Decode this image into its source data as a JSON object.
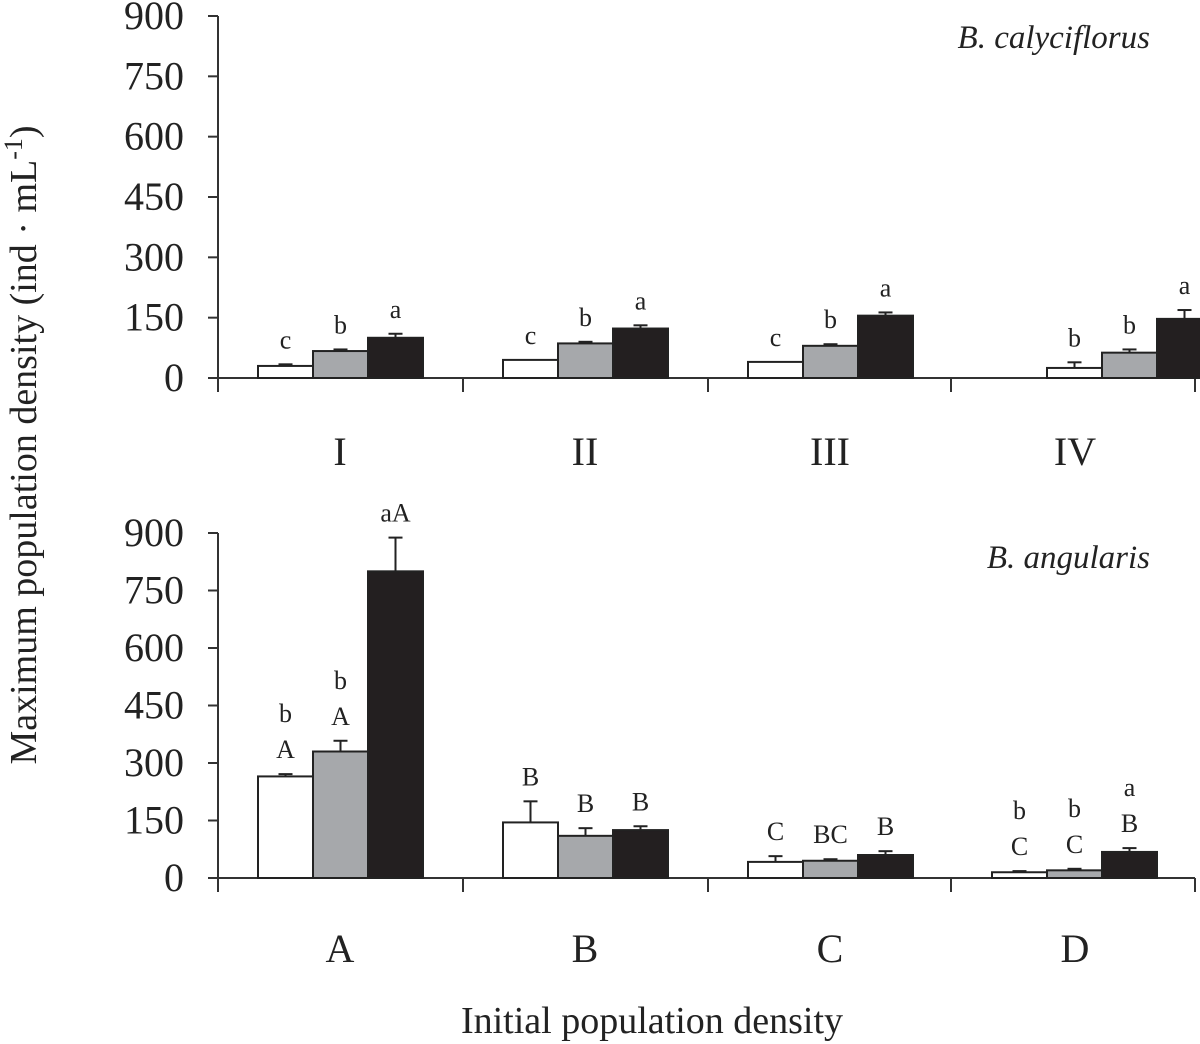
{
  "y_axis_title": "Maximum population density (ind · mL",
  "y_axis_title_sup": "-1",
  "y_axis_title_end": ")",
  "x_axis_title": "Initial population density",
  "colors": {
    "series1": "#ffffff",
    "series2": "#a6a8ab",
    "series3": "#231f20"
  },
  "chart_data": [
    {
      "type": "bar",
      "title": "B. calyciflorus",
      "ylim": [
        0,
        900
      ],
      "yticks": [
        "0",
        "150",
        "300",
        "450",
        "600",
        "750",
        "900"
      ],
      "categories": [
        "I",
        "II",
        "III",
        "IV"
      ],
      "series": [
        {
          "values": [
            30,
            45,
            40,
            25
          ],
          "errors": [
            4,
            0,
            0,
            14
          ],
          "sig": [
            [
              "c"
            ],
            [
              "c"
            ],
            [
              "c"
            ],
            [
              "b"
            ]
          ]
        },
        {
          "values": [
            67,
            86,
            80,
            63
          ],
          "errors": [
            4,
            4,
            4,
            8
          ],
          "sig": [
            [
              "b"
            ],
            [
              "b"
            ],
            [
              "b"
            ],
            [
              "b"
            ]
          ]
        },
        {
          "values": [
            100,
            123,
            155,
            147
          ],
          "errors": [
            10,
            8,
            8,
            22
          ],
          "sig": [
            [
              "a"
            ],
            [
              "a"
            ],
            [
              "a"
            ],
            [
              "a"
            ]
          ]
        }
      ]
    },
    {
      "type": "bar",
      "title": "B. angularis",
      "ylim": [
        0,
        900
      ],
      "yticks": [
        "0",
        "150",
        "300",
        "450",
        "600",
        "750",
        "900"
      ],
      "categories": [
        "A",
        "B",
        "C",
        "D"
      ],
      "series": [
        {
          "values": [
            265,
            145,
            42,
            15
          ],
          "errors": [
            6,
            55,
            15,
            3
          ],
          "sig": [
            [
              "b",
              "A"
            ],
            [
              "B"
            ],
            [
              "C"
            ],
            [
              "b",
              "C"
            ]
          ]
        },
        {
          "values": [
            330,
            110,
            45,
            20
          ],
          "errors": [
            28,
            20,
            4,
            4
          ],
          "sig": [
            [
              "b",
              "A"
            ],
            [
              "B"
            ],
            [
              "BC"
            ],
            [
              "b",
              "C"
            ]
          ]
        },
        {
          "values": [
            800,
            125,
            60,
            68
          ],
          "errors": [
            88,
            10,
            10,
            10
          ],
          "sig": [
            [
              "aA"
            ],
            [
              "B"
            ],
            [
              "B"
            ],
            [
              "a",
              "B"
            ]
          ]
        }
      ]
    }
  ]
}
